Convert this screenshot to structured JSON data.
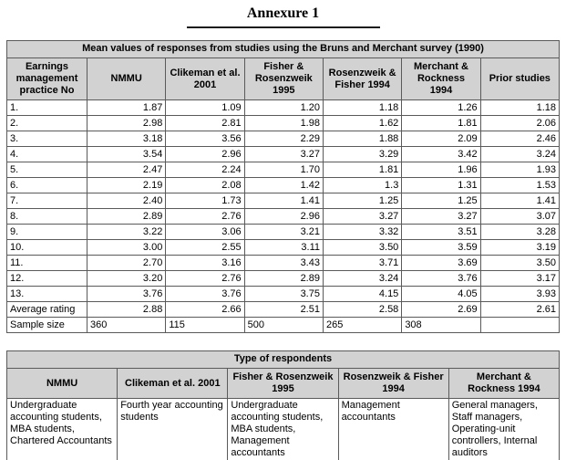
{
  "page": {
    "title": "Annexure 1"
  },
  "mean_table": {
    "caption": "Mean values of responses from studies using the Bruns and Merchant survey (1990)",
    "columns": [
      "Earnings management practice No",
      "NMMU",
      "Clikeman et al. 2001",
      "Fisher & Rosenzweik 1995",
      "Rosenzweik & Fisher 1994",
      "Merchant & Rockness 1994",
      "Prior studies"
    ],
    "rows": [
      [
        "1.",
        "1.87",
        "1.09",
        "1.20",
        "1.18",
        "1.26",
        "1.18"
      ],
      [
        "2.",
        "2.98",
        "2.81",
        "1.98",
        "1.62",
        "1.81",
        "2.06"
      ],
      [
        "3.",
        "3.18",
        "3.56",
        "2.29",
        "1.88",
        "2.09",
        "2.46"
      ],
      [
        "4.",
        "3.54",
        "2.96",
        "3.27",
        "3.29",
        "3.42",
        "3.24"
      ],
      [
        "5.",
        "2.47",
        "2.24",
        "1.70",
        "1.81",
        "1.96",
        "1.93"
      ],
      [
        "6.",
        "2.19",
        "2.08",
        "1.42",
        "1.3",
        "1.31",
        "1.53"
      ],
      [
        "7.",
        "2.40",
        "1.73",
        "1.41",
        "1.25",
        "1.25",
        "1.41"
      ],
      [
        "8.",
        "2.89",
        "2.76",
        "2.96",
        "3.27",
        "3.27",
        "3.07"
      ],
      [
        "9.",
        "3.22",
        "3.06",
        "3.21",
        "3.32",
        "3.51",
        "3.28"
      ],
      [
        "10.",
        "3.00",
        "2.55",
        "3.11",
        "3.50",
        "3.59",
        "3.19"
      ],
      [
        "11.",
        "2.70",
        "3.16",
        "3.43",
        "3.71",
        "3.69",
        "3.50"
      ],
      [
        "12.",
        "3.20",
        "2.76",
        "2.89",
        "3.24",
        "3.76",
        "3.17"
      ],
      [
        "13.",
        "3.76",
        "3.76",
        "3.75",
        "4.15",
        "4.05",
        "3.93"
      ],
      [
        "Average rating",
        "2.88",
        "2.66",
        "2.51",
        "2.58",
        "2.69",
        "2.61"
      ],
      [
        "Sample size",
        "360",
        "115",
        "500",
        "265",
        "308",
        ""
      ]
    ]
  },
  "respondents_table": {
    "caption": "Type of respondents",
    "columns": [
      "NMMU",
      "Clikeman et al. 2001",
      "Fisher & Rosenzweik 1995",
      "Rosenzweik & Fisher 1994",
      "Merchant & Rockness 1994"
    ],
    "rows": [
      [
        "Undergraduate accounting students, MBA students, Chartered Accountants",
        "Fourth year accounting students",
        "Undergraduate accounting students, MBA students, Management accountants",
        "Management accountants",
        "General managers, Staff managers, Operating-unit controllers, Internal auditors"
      ]
    ]
  }
}
